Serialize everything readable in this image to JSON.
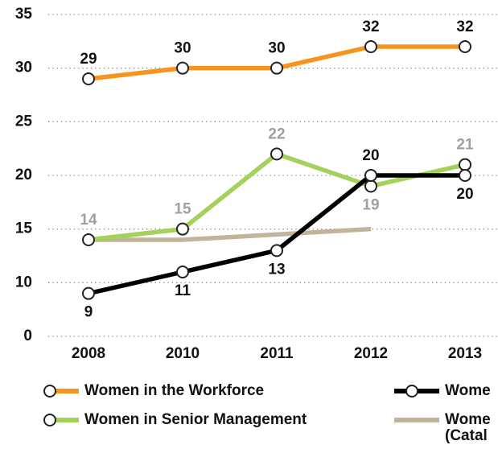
{
  "chart_data": {
    "type": "line",
    "categories": [
      "2008",
      "2010",
      "2011",
      "2012",
      "2013"
    ],
    "ylim": [
      0,
      35
    ],
    "axis_break": [
      0,
      5
    ],
    "yticks": [
      0,
      10,
      15,
      20,
      25,
      30,
      35
    ],
    "grid": true,
    "series": [
      {
        "name": "Women in the Workforce",
        "color": "#f7941d",
        "label_color": "#111111",
        "marker": true,
        "values": [
          29,
          30,
          30,
          32,
          32
        ]
      },
      {
        "name": "Wome",
        "color": "#000000",
        "label_color": "#111111",
        "marker": true,
        "values": [
          9,
          11,
          13,
          20,
          20
        ]
      },
      {
        "name": "Women in Senior Management",
        "color": "#a3d15a",
        "label_color": "#a0a0a0",
        "marker": true,
        "values": [
          14,
          15,
          22,
          19,
          21
        ]
      },
      {
        "name": "Wome\n(Catal",
        "color": "#c2b49a",
        "marker": false,
        "values": [
          14,
          14,
          14.5,
          15,
          null
        ]
      }
    ]
  }
}
